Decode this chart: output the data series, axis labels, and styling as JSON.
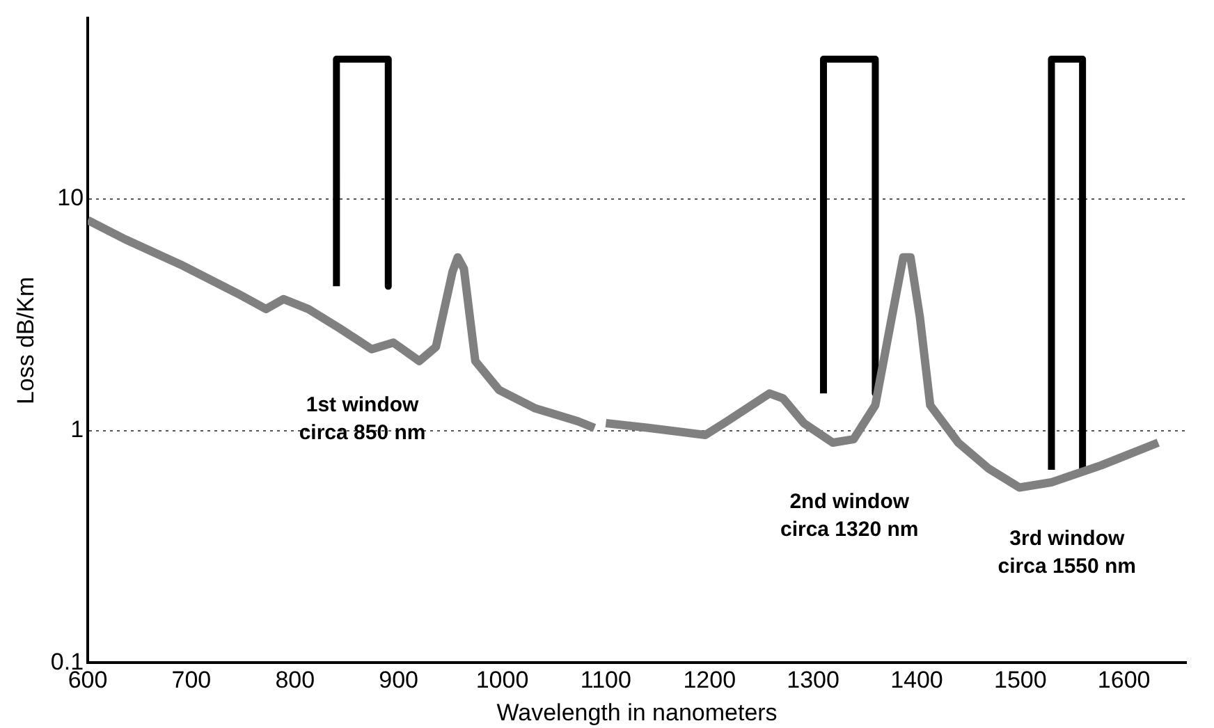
{
  "chart_data": {
    "type": "line",
    "xlabel": "Wavelength in nanometers",
    "ylabel": "Loss dB/Km",
    "log": "y",
    "grid": "y",
    "marker": "none",
    "line_style": "solid",
    "xlim": [
      600,
      1660
    ],
    "xticks": [
      600,
      700,
      800,
      900,
      1000,
      1100,
      1200,
      1300,
      1400,
      1500,
      1600
    ],
    "ylim": [
      0.1,
      60
    ],
    "yticks": [
      0.1,
      1,
      10
    ],
    "series": [
      {
        "color": "#808080",
        "x": [
          600,
          636,
          690,
          745,
          772,
          789,
          813,
          843,
          874,
          895,
          920,
          936,
          952,
          957,
          963,
          974,
          997,
          1032,
          1073,
          1089,
          1095,
          1100,
          1141,
          1196,
          1217,
          1258,
          1271,
          1291,
          1319,
          1339,
          1360,
          1376,
          1387,
          1394,
          1403,
          1413,
          1440,
          1469,
          1499,
          1530,
          1578,
          1633
        ],
        "values": [
          8.1,
          6.7,
          5.2,
          3.9,
          3.35,
          3.7,
          3.35,
          2.77,
          2.25,
          2.4,
          2.0,
          2.3,
          4.85,
          5.6,
          5.0,
          2.0,
          1.5,
          1.25,
          1.1,
          1.03,
          null,
          1.08,
          1.03,
          0.96,
          1.1,
          1.45,
          1.38,
          1.08,
          0.89,
          0.92,
          1.29,
          3.1,
          5.6,
          5.6,
          3.1,
          1.29,
          0.89,
          0.69,
          0.57,
          0.6,
          0.71,
          0.89
        ]
      },
      {
        "color": "#000000",
        "x": [
          840,
          840,
          890,
          890
        ],
        "values": [
          4.2,
          40,
          40,
          4.2
        ]
      },
      {
        "color": "#000000",
        "x": [
          1310,
          1310,
          1360,
          1360
        ],
        "values": [
          1.45,
          40,
          40,
          1.45
        ]
      },
      {
        "color": "#000000",
        "x": [
          1530,
          1530,
          1560,
          1560
        ],
        "values": [
          0.68,
          40,
          40,
          0.68
        ]
      }
    ],
    "annotations": [
      "1st window\ncirca 850 nm",
      "2nd window\ncirca 1320 nm",
      "3rd window\ncirca 1550 nm"
    ]
  }
}
